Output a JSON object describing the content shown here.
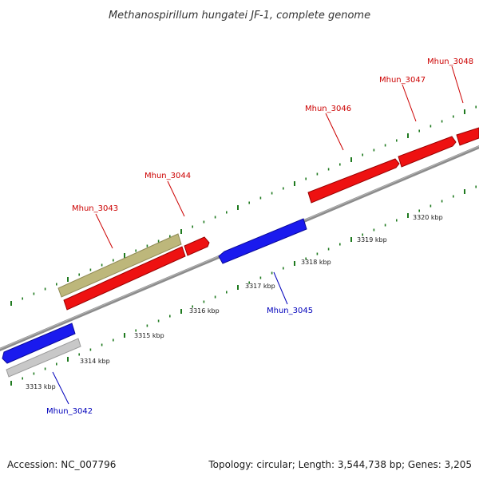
{
  "title": "Methanospirillum hungatei JF-1, complete genome",
  "footer": {
    "accession": "Accession: NC_007796",
    "summary": "Topology: circular; Length: 3,544,738 bp; Genes: 3,205"
  },
  "colors": {
    "backbone": "#8c8c8c",
    "tick": "#1f7a1f",
    "forward_strand": "#ee1111",
    "reverse_strand": "#1a1aee",
    "label_forward": "#cc0000",
    "label_reverse": "#0000bb",
    "olive_feature": "#bdb77b",
    "grey_feature": "#c8c8c8"
  },
  "kbp_labels": [
    "3313 kbp",
    "3314 kbp",
    "3315 kbp",
    "3316 kbp",
    "3317 kbp",
    "3318 kbp",
    "3319 kbp",
    "3320 kbp"
  ],
  "genes": [
    {
      "id": "Mhun_3042",
      "strand": "reverse"
    },
    {
      "id": "Mhun_3043",
      "strand": "forward"
    },
    {
      "id": "Mhun_3044",
      "strand": "forward"
    },
    {
      "id": "Mhun_3045",
      "strand": "reverse"
    },
    {
      "id": "Mhun_3046",
      "strand": "forward"
    },
    {
      "id": "Mhun_3047",
      "strand": "forward"
    },
    {
      "id": "Mhun_3048",
      "strand": "forward"
    }
  ]
}
